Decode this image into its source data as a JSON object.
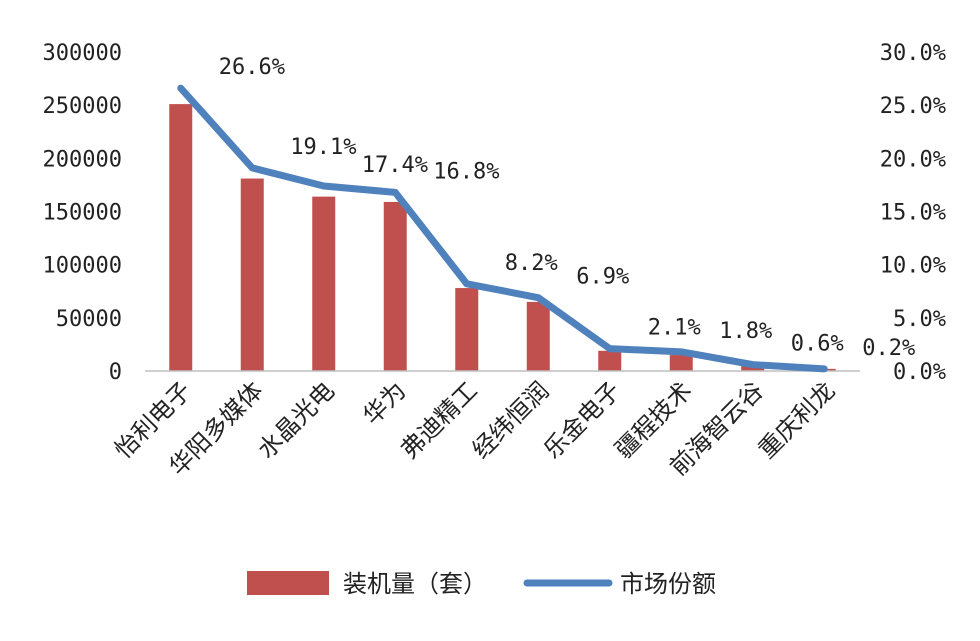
{
  "chart_data": {
    "type": "bar",
    "categories": [
      "怡利电子",
      "华阳多媒体",
      "水晶光电",
      "华为",
      "弗迪精工",
      "经纬恒润",
      "乐金电子",
      "疆程技术",
      "前海智云谷",
      "重庆利龙"
    ],
    "series": [
      {
        "name": "装机量（套）",
        "type": "bar",
        "axis": "left",
        "color": "#c0504d",
        "values": [
          251000,
          181000,
          164000,
          159000,
          78000,
          65000,
          19000,
          15000,
          5000,
          2000
        ]
      },
      {
        "name": "市场份额",
        "type": "line",
        "axis": "right",
        "color": "#4f81bd",
        "values": [
          26.6,
          19.1,
          17.4,
          16.8,
          8.2,
          6.9,
          2.1,
          1.8,
          0.6,
          0.2
        ],
        "labels": [
          "26.6%",
          "19.1%",
          "17.4%",
          "16.8%",
          "8.2%",
          "6.9%",
          "2.1%",
          "1.8%",
          "0.6%",
          "0.2%"
        ]
      }
    ],
    "y_left": {
      "ylim": [
        0,
        300000
      ],
      "ticks": [
        "0",
        "50000",
        "100000",
        "150000",
        "200000",
        "250000",
        "300000"
      ]
    },
    "y_right": {
      "ylim": [
        0,
        30
      ],
      "ticks": [
        "0.0%",
        "5.0%",
        "10.0%",
        "15.0%",
        "20.0%",
        "25.0%",
        "30.0%"
      ]
    },
    "legend": {
      "placement": "bottom",
      "items": [
        "装机量（套）",
        "市场份额"
      ]
    },
    "grid": false
  }
}
